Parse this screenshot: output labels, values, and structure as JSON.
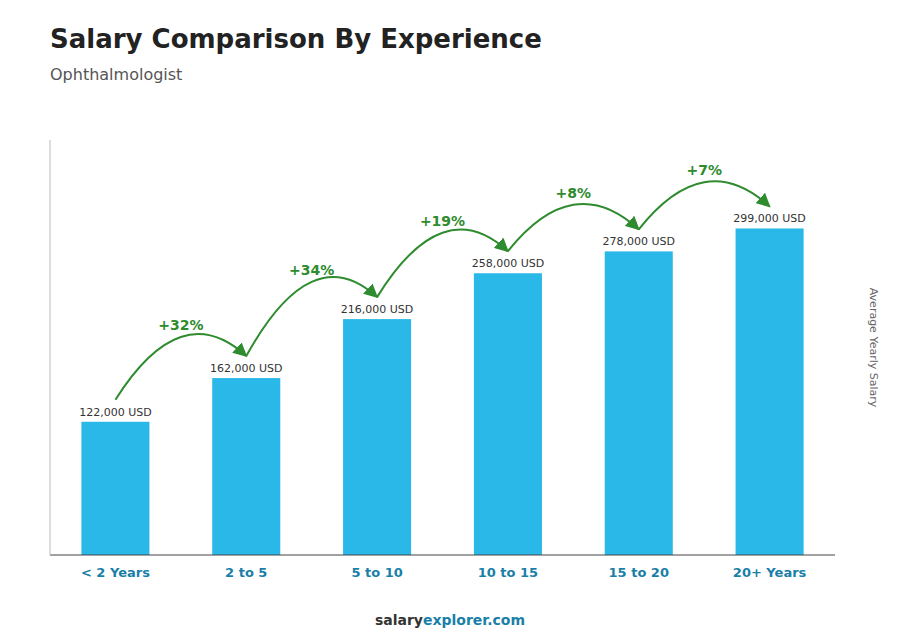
{
  "chart_data": {
    "type": "bar",
    "title": "Salary Comparison By Experience",
    "subtitle": "Ophthalmologist",
    "ylabel": "Average Yearly Salary",
    "categories": [
      "< 2 Years",
      "2 to 5",
      "5 to 10",
      "10 to 15",
      "15 to 20",
      "20+ Years"
    ],
    "values": [
      122000,
      162000,
      216000,
      258000,
      278000,
      299000
    ],
    "value_labels": [
      "122,000 USD",
      "162,000 USD",
      "216,000 USD",
      "258,000 USD",
      "278,000 USD",
      "299,000 USD"
    ],
    "data_labels": true,
    "annotations": [
      "+32%",
      "+34%",
      "+19%",
      "+8%",
      "+7%"
    ],
    "footer": [
      "salary",
      "explorer.com"
    ],
    "color": "#29B8E8",
    "ylim": [
      0,
      380000
    ],
    "grid": false,
    "tick_labels": "x"
  }
}
